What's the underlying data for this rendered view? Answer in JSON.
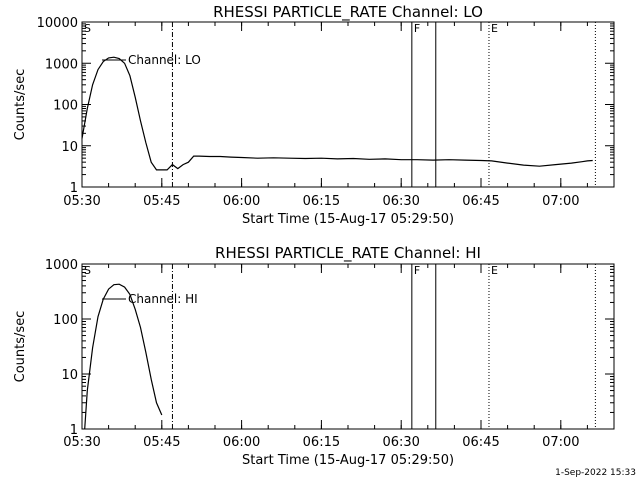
{
  "footer_text": "1-Sep-2022 15:33",
  "chart_data": [
    {
      "type": "line",
      "title": "RHESSI PARTICLE_RATE Channel: LO",
      "xlabel": "Start Time (15-Aug-17 05:29:50)",
      "ylabel": "Counts/sec",
      "yscale": "log",
      "ylim": [
        1,
        10000
      ],
      "xlim": [
        "05:30",
        "07:10"
      ],
      "x_ticks": [
        "05:30",
        "05:45",
        "06:00",
        "06:15",
        "06:30",
        "06:45",
        "07:00"
      ],
      "y_ticks": [
        "1",
        "10",
        "100",
        "1000",
        "10000"
      ],
      "legend": "Channel: LO",
      "markers": [
        {
          "label": "S",
          "time": "05:30",
          "style": "none"
        },
        {
          "label": "",
          "time": "05:47",
          "style": "dashdot"
        },
        {
          "label": "F",
          "time": "06:32",
          "style": "solid"
        },
        {
          "label": "",
          "time": "06:36.5",
          "style": "solid"
        },
        {
          "label": "E",
          "time": "06:46.5",
          "style": "dotted"
        },
        {
          "label": "",
          "time": "07:06.5",
          "style": "dotted"
        }
      ],
      "series": [
        {
          "x": [
            "05:30",
            "05:31",
            "05:32",
            "05:33",
            "05:34",
            "05:35",
            "05:36",
            "05:37",
            "05:38",
            "05:39",
            "05:40",
            "05:41",
            "05:42",
            "05:43",
            "05:44",
            "05:45",
            "05:46",
            "05:47",
            "05:48",
            "05:49",
            "05:50",
            "05:51",
            "05:52",
            "05:54",
            "05:56",
            "05:58",
            "06:00",
            "06:03",
            "06:06",
            "06:09",
            "06:12",
            "06:15",
            "06:18",
            "06:21",
            "06:24",
            "06:27",
            "06:30",
            "06:33",
            "06:36",
            "06:39",
            "06:42",
            "06:45",
            "06:47",
            "06:50",
            "06:53",
            "06:56",
            "06:59",
            "07:02",
            "07:04",
            "07:05",
            "07:06"
          ],
          "y": [
            15,
            80,
            300,
            700,
            1100,
            1350,
            1400,
            1300,
            1000,
            500,
            150,
            40,
            12,
            4,
            2.6,
            2.6,
            2.6,
            3.5,
            2.8,
            3.5,
            4.0,
            5.6,
            5.6,
            5.5,
            5.5,
            5.3,
            5.2,
            5.0,
            5.1,
            5.0,
            4.9,
            5.0,
            4.8,
            4.9,
            4.7,
            4.8,
            4.6,
            4.6,
            4.5,
            4.6,
            4.5,
            4.4,
            4.3,
            3.8,
            3.4,
            3.2,
            3.5,
            3.8,
            4.1,
            4.3,
            4.4
          ]
        }
      ]
    },
    {
      "type": "line",
      "title": "RHESSI PARTICLE_RATE Channel: HI",
      "xlabel": "Start Time (15-Aug-17 05:29:50)",
      "ylabel": "Counts/sec",
      "yscale": "log",
      "ylim": [
        1,
        1000
      ],
      "xlim": [
        "05:30",
        "07:10"
      ],
      "x_ticks": [
        "05:30",
        "05:45",
        "06:00",
        "06:15",
        "06:30",
        "06:45",
        "07:00"
      ],
      "y_ticks": [
        "1",
        "10",
        "100",
        "1000"
      ],
      "legend": "Channel: HI",
      "markers": [
        {
          "label": "S",
          "time": "05:30",
          "style": "none"
        },
        {
          "label": "",
          "time": "05:47",
          "style": "dashdot"
        },
        {
          "label": "F",
          "time": "06:32",
          "style": "solid"
        },
        {
          "label": "",
          "time": "06:36.5",
          "style": "solid"
        },
        {
          "label": "E",
          "time": "06:46.5",
          "style": "dotted"
        },
        {
          "label": "",
          "time": "07:06.5",
          "style": "dotted"
        }
      ],
      "series": [
        {
          "x": [
            "05:30.5",
            "05:31",
            "05:32",
            "05:33",
            "05:34",
            "05:35",
            "05:36",
            "05:37",
            "05:38",
            "05:39",
            "05:40",
            "05:41",
            "05:42",
            "05:43",
            "05:44",
            "05:45"
          ],
          "y": [
            1.0,
            5,
            30,
            110,
            230,
            350,
            420,
            430,
            380,
            280,
            150,
            70,
            25,
            8,
            3,
            1.8
          ]
        }
      ]
    }
  ]
}
